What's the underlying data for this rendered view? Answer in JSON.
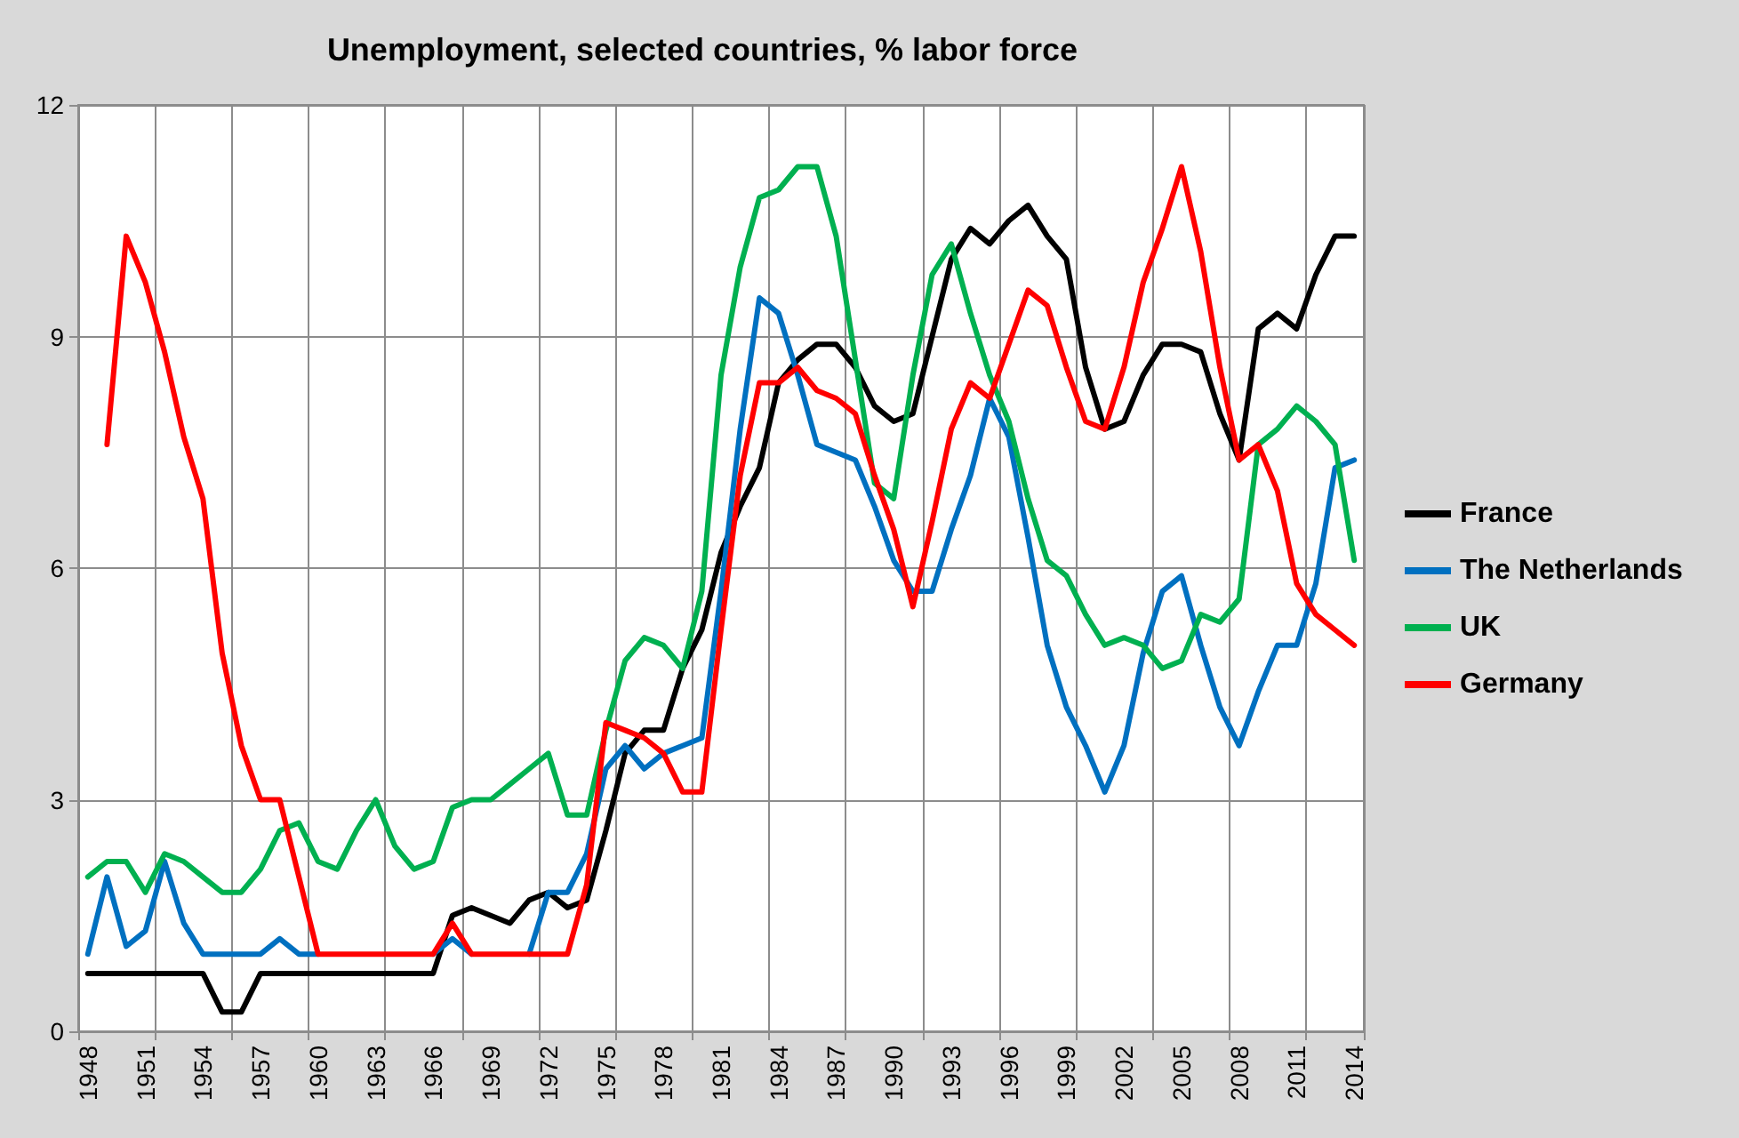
{
  "chart_data": {
    "type": "line",
    "title": "Unemployment, selected countries, % labor force",
    "categories": [
      "1948",
      null,
      null,
      "1951",
      null,
      null,
      "1954",
      null,
      null,
      "1957",
      null,
      null,
      "1960",
      null,
      null,
      "1963",
      null,
      null,
      "1966",
      null,
      null,
      "1969",
      null,
      null,
      "1972",
      null,
      null,
      "1975",
      null,
      null,
      "1978",
      null,
      null,
      "1981",
      null,
      null,
      "1984",
      null,
      null,
      "1987",
      null,
      null,
      "1990",
      null,
      null,
      "1993",
      null,
      null,
      "1996",
      null,
      null,
      "1999",
      null,
      null,
      "2002",
      null,
      null,
      "2005",
      null,
      null,
      "2008",
      null,
      null,
      "2011",
      null,
      null,
      "2014"
    ],
    "series": [
      {
        "name": "France",
        "color": "#000000",
        "values": [
          0.75,
          0.75,
          0.75,
          0.75,
          0.75,
          0.75,
          0.75,
          0.25,
          0.25,
          0.75,
          0.75,
          0.75,
          0.75,
          0.75,
          0.75,
          0.75,
          0.75,
          0.75,
          0.75,
          1.5,
          1.6,
          1.5,
          1.4,
          1.7,
          1.8,
          1.6,
          1.7,
          2.6,
          3.6,
          3.9,
          3.9,
          4.7,
          5.2,
          6.2,
          6.8,
          7.3,
          8.4,
          8.7,
          8.9,
          8.9,
          8.6,
          8.1,
          7.9,
          8.0,
          9.0,
          10.0,
          10.4,
          10.2,
          10.5,
          10.7,
          10.3,
          10.0,
          8.6,
          7.8,
          7.9,
          8.5,
          8.9,
          8.9,
          8.8,
          8.0,
          7.4,
          9.1,
          9.3,
          9.1,
          9.8,
          10.3,
          10.3
        ]
      },
      {
        "name": "The Netherlands",
        "color": "#0070c0",
        "values": [
          1.0,
          2.0,
          1.1,
          1.3,
          2.2,
          1.4,
          1.0,
          1.0,
          1.0,
          1.0,
          1.2,
          1.0,
          1.0,
          null,
          null,
          null,
          null,
          null,
          1.0,
          1.2,
          1.0,
          null,
          null,
          1.0,
          1.8,
          1.8,
          2.3,
          3.4,
          3.7,
          3.4,
          3.6,
          3.7,
          3.8,
          5.7,
          7.8,
          9.5,
          9.3,
          8.5,
          7.6,
          7.5,
          7.4,
          6.8,
          6.1,
          5.7,
          5.7,
          6.5,
          7.2,
          8.2,
          7.7,
          6.4,
          5.0,
          4.2,
          3.7,
          3.1,
          3.7,
          4.9,
          5.7,
          5.9,
          5.0,
          4.2,
          3.7,
          4.4,
          5.0,
          5.0,
          5.8,
          7.3,
          7.4
        ]
      },
      {
        "name": "UK",
        "color": "#00b050",
        "values": [
          2.0,
          2.2,
          2.2,
          1.8,
          2.3,
          2.2,
          2.0,
          1.8,
          1.8,
          2.1,
          2.6,
          2.7,
          2.2,
          2.1,
          2.6,
          3.0,
          2.4,
          2.1,
          2.2,
          2.9,
          3.0,
          3.0,
          3.2,
          3.4,
          3.6,
          2.8,
          2.8,
          3.9,
          4.8,
          5.1,
          5.0,
          4.7,
          5.7,
          8.5,
          9.9,
          10.8,
          10.9,
          11.2,
          11.2,
          10.3,
          8.7,
          7.1,
          6.9,
          8.5,
          9.8,
          10.2,
          9.3,
          8.5,
          7.9,
          6.9,
          6.1,
          5.9,
          5.4,
          5.0,
          5.1,
          5.0,
          4.7,
          4.8,
          5.4,
          5.3,
          5.6,
          7.6,
          7.8,
          8.1,
          7.9,
          7.6,
          6.1
        ]
      },
      {
        "name": "Germany",
        "color": "#ff0000",
        "values": [
          null,
          7.6,
          10.3,
          9.7,
          8.8,
          7.7,
          6.9,
          4.9,
          3.7,
          3.0,
          3.0,
          2.0,
          1.0,
          1.0,
          1.0,
          1.0,
          1.0,
          1.0,
          1.0,
          1.4,
          1.0,
          1.0,
          1.0,
          1.0,
          1.0,
          1.0,
          1.9,
          4.0,
          3.9,
          3.8,
          3.6,
          3.1,
          3.1,
          5.2,
          7.2,
          8.4,
          8.4,
          8.6,
          8.3,
          8.2,
          8.0,
          7.2,
          6.5,
          5.5,
          6.6,
          7.8,
          8.4,
          8.2,
          8.9,
          9.6,
          9.4,
          8.6,
          7.9,
          7.8,
          8.6,
          9.7,
          10.4,
          11.2,
          10.1,
          8.6,
          7.4,
          7.6,
          7.0,
          5.8,
          5.4,
          5.2,
          5.0
        ]
      }
    ],
    "ylim": [
      0,
      12
    ],
    "yticks": [
      0,
      3,
      6,
      9,
      12
    ],
    "grid": true,
    "legend": "right",
    "marker": "none",
    "line_style": "solid"
  }
}
